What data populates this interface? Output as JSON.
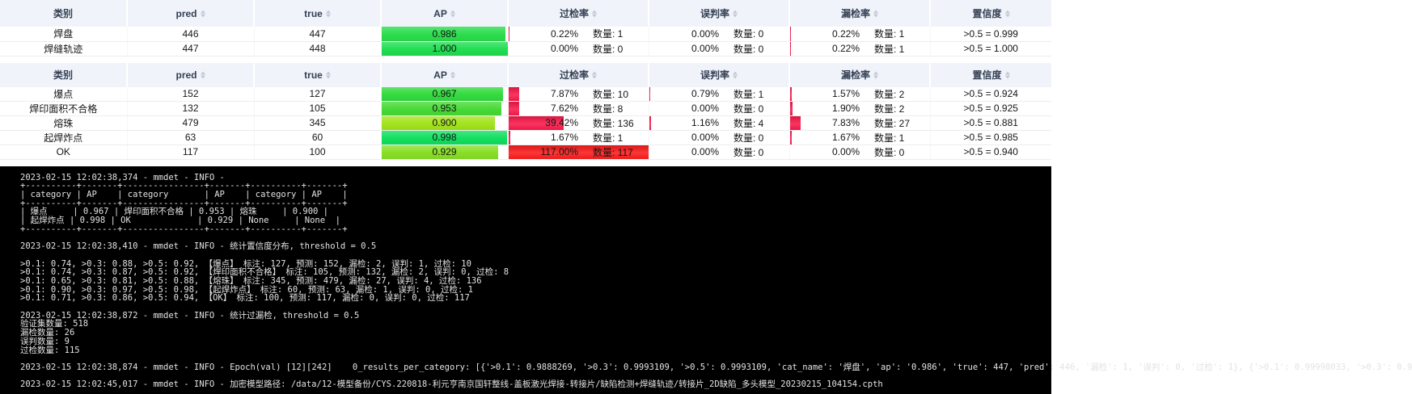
{
  "labels": {
    "count": "数量"
  },
  "columns": [
    {
      "key": "category",
      "label": "类别",
      "sortable": false
    },
    {
      "key": "pred",
      "label": "pred",
      "sortable": true
    },
    {
      "key": "true",
      "label": "true",
      "sortable": true
    },
    {
      "key": "ap",
      "label": "AP",
      "sortable": true
    },
    {
      "key": "over",
      "label": "过检率",
      "sortable": true
    },
    {
      "key": "mis",
      "label": "误判率",
      "sortable": true
    },
    {
      "key": "miss",
      "label": "漏检率",
      "sortable": true
    },
    {
      "key": "conf",
      "label": "置信度",
      "sortable": true
    }
  ],
  "colors": {
    "rate_bar": "#f8194a",
    "rate_bar_full": "#fa1b1b",
    "header_bg": "#f0f3f9"
  },
  "tables": [
    {
      "name": "primary-categories",
      "rows": [
        {
          "category": "焊盘",
          "pred": "446",
          "true": "447",
          "ap": "0.986",
          "ap_color": "#2bdd4d",
          "over": "0.22%",
          "over_n": "1",
          "mis": "0.00%",
          "mis_n": "0",
          "miss": "0.22%",
          "miss_n": "1",
          "conf": ">0.5 = 0.999"
        },
        {
          "category": "焊缝轨迹",
          "pred": "447",
          "true": "448",
          "ap": "1.000",
          "ap_color": "#21de52",
          "over": "0.00%",
          "over_n": "0",
          "mis": "0.00%",
          "mis_n": "0",
          "miss": "0.22%",
          "miss_n": "1",
          "conf": ">0.5 = 1.000"
        }
      ]
    },
    {
      "name": "defect-categories",
      "rows": [
        {
          "category": "爆点",
          "pred": "152",
          "true": "127",
          "ap": "0.967",
          "ap_color": "#33db3e",
          "over": "7.87%",
          "over_n": "10",
          "mis": "0.79%",
          "mis_n": "1",
          "miss": "1.57%",
          "miss_n": "2",
          "conf": ">0.5 = 0.924"
        },
        {
          "category": "焊印面积不合格",
          "pred": "132",
          "true": "105",
          "ap": "0.953",
          "ap_color": "#47da36",
          "over": "7.62%",
          "over_n": "8",
          "mis": "0.00%",
          "mis_n": "0",
          "miss": "1.90%",
          "miss_n": "2",
          "conf": ">0.5 = 0.925"
        },
        {
          "category": "熔珠",
          "pred": "479",
          "true": "345",
          "ap": "0.900",
          "ap_color": "#a3e31d",
          "over": "39.42%",
          "over_n": "136",
          "mis": "1.16%",
          "mis_n": "4",
          "miss": "7.83%",
          "miss_n": "27",
          "conf": ">0.5 = 0.881"
        },
        {
          "category": "起焊炸点",
          "pred": "63",
          "true": "60",
          "ap": "0.998",
          "ap_color": "#12df60",
          "over": "1.67%",
          "over_n": "1",
          "mis": "0.00%",
          "mis_n": "0",
          "miss": "1.67%",
          "miss_n": "1",
          "conf": ">0.5 = 0.985"
        },
        {
          "category": "OK",
          "pred": "117",
          "true": "100",
          "ap": "0.929",
          "ap_color": "#88df26",
          "over": "117.00%",
          "over_n": "117",
          "mis": "0.00%",
          "mis_n": "0",
          "miss": "0.00%",
          "miss_n": "0",
          "conf": ">0.5 = 0.940"
        }
      ]
    }
  ],
  "terminal": {
    "lines": [
      "2023-02-15 12:02:38,374 - mmdet - INFO - ",
      "+----------+-------+----------------+-------+----------+-------+",
      "| category | AP    | category       | AP    | category | AP    |",
      "+----------+-------+----------------+-------+----------+-------+",
      "| 爆点     | 0.967 | 焊印面积不合格 | 0.953 | 熔珠     | 0.900 |",
      "| 起焊炸点 | 0.998 | OK             | 0.929 | None     | None  |",
      "+----------+-------+----------------+-------+----------+-------+",
      "",
      "2023-02-15 12:02:38,410 - mmdet - INFO - 统计置信度分布, threshold = 0.5",
      "",
      ">0.1: 0.74, >0.3: 0.88, >0.5: 0.92, 【爆点】 标注: 127, 预测: 152, 漏检: 2, 误判: 1, 过检: 10",
      ">0.1: 0.74, >0.3: 0.87, >0.5: 0.92, 【焊印面积不合格】 标注: 105, 预测: 132, 漏检: 2, 误判: 0, 过检: 8",
      ">0.1: 0.65, >0.3: 0.81, >0.5: 0.88, 【熔珠】 标注: 345, 预测: 479, 漏检: 27, 误判: 4, 过检: 136",
      ">0.1: 0.90, >0.3: 0.97, >0.5: 0.98, 【起焊炸点】 标注: 60, 预测: 63, 漏检: 1, 误判: 0, 过检: 1",
      ">0.1: 0.71, >0.3: 0.86, >0.5: 0.94, 【OK】 标注: 100, 预测: 117, 漏检: 0, 误判: 0, 过检: 117",
      "",
      "2023-02-15 12:02:38,872 - mmdet - INFO - 统计过漏检, threshold = 0.5",
      "验证集数量: 518",
      "漏检数量: 26",
      "误判数量: 9",
      "过检数量: 115",
      "",
      "2023-02-15 12:02:38,874 - mmdet - INFO - Epoch(val) [12][242]    0_results_per_category: [{'>0.1': 0.9888269, '>0.3': 0.9993109, '>0.5': 0.9993109, 'cat_name': '焊盘', 'ap': '0.986', 'true': 447, 'pred': 446, '漏检': 1, '误判': 0, '过检': 1}, {'>0.1': 0.99998033, '>0.3': 0.9",
      "",
      "2023-02-15 12:02:45,017 - mmdet - INFO - 加密模型路径: /data/12-模型备份/CYS.220818-利元亨南京国轩整线-盖板激光焊接-转接片/缺陷检测+焊缝轨迹/转接片_2D缺陷_多头模型_20230215_104154.cpth"
    ]
  }
}
